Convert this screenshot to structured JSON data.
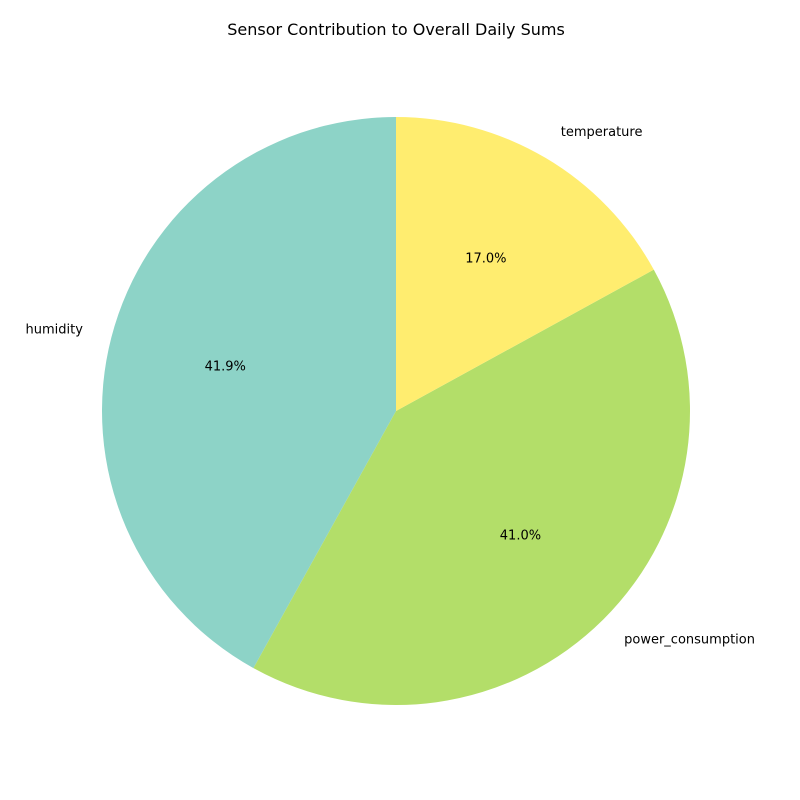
{
  "chart_data": {
    "type": "pie",
    "title": "Sensor Contribution to Overall Daily Sums",
    "start_angle_deg": 90,
    "direction": "counterclockwise",
    "slices": [
      {
        "label": "humidity",
        "value": 41.9,
        "pct_label": "41.9%",
        "color": "#8dd3c7"
      },
      {
        "label": "power_consumption",
        "value": 41.0,
        "pct_label": "41.0%",
        "color": "#b3de69"
      },
      {
        "label": "temperature",
        "value": 17.0,
        "pct_label": "17.0%",
        "color": "#ffed6f"
      }
    ]
  }
}
